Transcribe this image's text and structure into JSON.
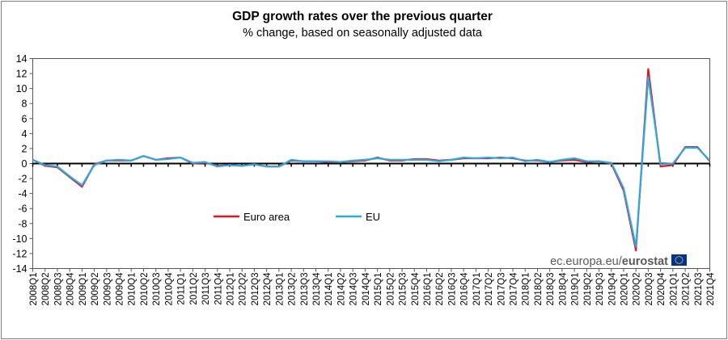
{
  "chart_data": {
    "type": "line",
    "title": "GDP growth rates over the previous quarter",
    "subtitle": "% change, based on seasonally adjusted data",
    "xlabel": "",
    "ylabel": "",
    "ylim": [
      -14,
      14
    ],
    "yticks": [
      14,
      12,
      10,
      8,
      6,
      4,
      2,
      0,
      -2,
      -4,
      -6,
      -8,
      -10,
      -12,
      -14
    ],
    "grid": false,
    "legend_position": "bottom-left",
    "categories": [
      "2008Q1",
      "2008Q2",
      "2008Q3",
      "2008Q4",
      "2009Q1",
      "2009Q2",
      "2009Q3",
      "2009Q4",
      "2010Q1",
      "2010Q2",
      "2010Q3",
      "2010Q4",
      "2011Q1",
      "2011Q2",
      "2011Q3",
      "2011Q4",
      "2012Q1",
      "2012Q2",
      "2012Q3",
      "2012Q4",
      "2013Q1",
      "2013Q2",
      "2013Q3",
      "2013Q4",
      "2014Q1",
      "2014Q2",
      "2014Q3",
      "2014Q4",
      "2015Q1",
      "2015Q2",
      "2015Q3",
      "2015Q4",
      "2016Q1",
      "2016Q2",
      "2016Q3",
      "2016Q4",
      "2017Q1",
      "2017Q2",
      "2017Q3",
      "2017Q4",
      "2018Q1",
      "2018Q2",
      "2018Q3",
      "2018Q4",
      "2019Q1",
      "2019Q2",
      "2019Q3",
      "2019Q4",
      "2020Q1",
      "2020Q2",
      "2020Q3",
      "2020Q4",
      "2021Q1",
      "2021Q2",
      "2021Q3",
      "2021Q4"
    ],
    "series": [
      {
        "name": "Euro area",
        "color": "#e8141c",
        "values": [
          0.5,
          -0.3,
          -0.5,
          -1.8,
          -3.1,
          -0.1,
          0.4,
          0.4,
          0.4,
          1.0,
          0.5,
          0.7,
          0.8,
          0.0,
          0.1,
          -0.3,
          -0.2,
          -0.3,
          -0.1,
          -0.4,
          -0.4,
          0.4,
          0.3,
          0.3,
          0.2,
          0.2,
          0.3,
          0.4,
          0.8,
          0.4,
          0.4,
          0.6,
          0.6,
          0.4,
          0.5,
          0.7,
          0.7,
          0.7,
          0.8,
          0.7,
          0.4,
          0.4,
          0.2,
          0.4,
          0.5,
          0.2,
          0.3,
          0.0,
          -3.6,
          -11.6,
          12.6,
          -0.4,
          -0.2,
          2.2,
          2.2,
          0.3
        ]
      },
      {
        "name": "EU",
        "color": "#29abe2",
        "values": [
          0.5,
          -0.2,
          -0.4,
          -1.7,
          -2.9,
          -0.2,
          0.4,
          0.5,
          0.4,
          1.0,
          0.5,
          0.6,
          0.8,
          0.1,
          0.2,
          -0.4,
          -0.2,
          -0.3,
          -0.1,
          -0.4,
          -0.4,
          0.5,
          0.3,
          0.3,
          0.3,
          0.2,
          0.4,
          0.5,
          0.7,
          0.5,
          0.5,
          0.5,
          0.5,
          0.3,
          0.5,
          0.8,
          0.7,
          0.8,
          0.7,
          0.8,
          0.3,
          0.5,
          0.2,
          0.5,
          0.7,
          0.3,
          0.3,
          0.1,
          -3.3,
          -11.1,
          11.5,
          -0.1,
          0.0,
          2.1,
          2.1,
          0.4
        ]
      }
    ]
  },
  "branding": {
    "site": "ec.europa.eu/",
    "name": "eurostat",
    "flag_color": "#003399",
    "star_color": "#ffcc00"
  }
}
